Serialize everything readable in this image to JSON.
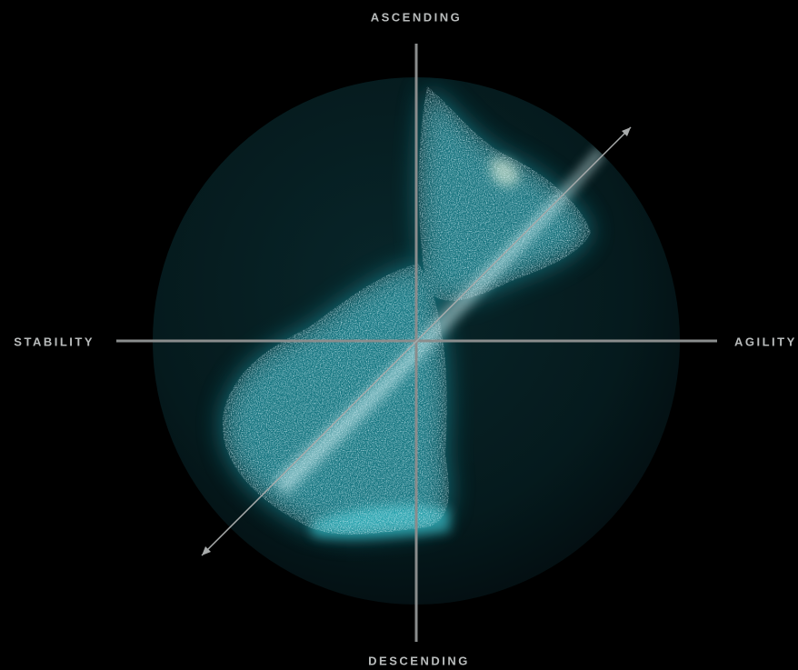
{
  "labels": {
    "top": "ASCENDING",
    "bottom": "DESCENDING",
    "left": "STABILITY",
    "right": "AGILITY"
  }
}
